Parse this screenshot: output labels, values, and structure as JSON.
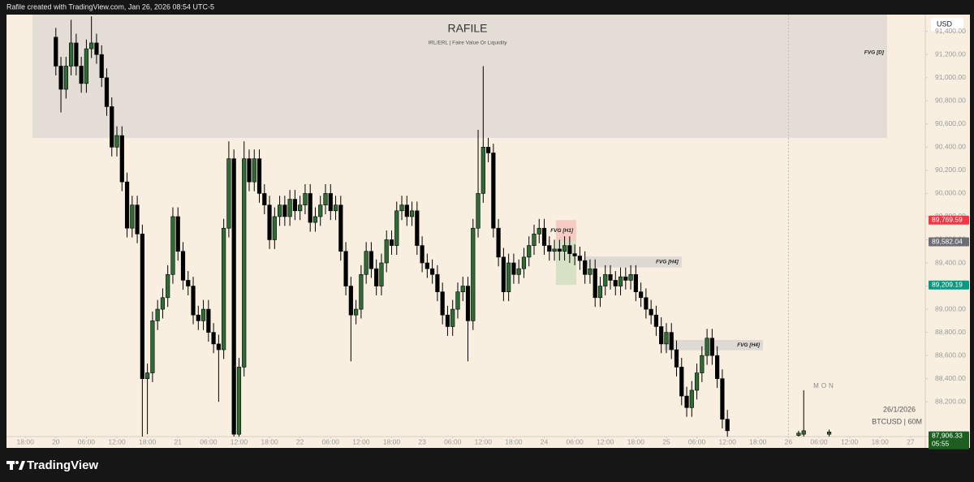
{
  "header": "Rafile created with TradingView.com, Jan 26, 2026 08:54 UTC-5",
  "footer": "TradingView",
  "chart_data": {
    "type": "candlestick",
    "title": "RAFILE",
    "subtitle": "IRL/ERL | Faire Value Or Liquidity",
    "currency": "USD",
    "symbol": "BTCUSD | 60M",
    "date": "26/1/2026",
    "session": "MON",
    "up_color": "#2f6b35",
    "down_color": "#000000",
    "xlim": [
      -3.7,
      176.9
    ],
    "ylim": [
      87900,
      91545
    ],
    "session_break": 150,
    "xticks": [
      {
        "value": 0,
        "label": "18:00"
      },
      {
        "value": 6,
        "label": "20"
      },
      {
        "value": 12,
        "label": "06:00"
      },
      {
        "value": 18,
        "label": "12:00"
      },
      {
        "value": 24,
        "label": "18:00"
      },
      {
        "value": 30,
        "label": "21"
      },
      {
        "value": 36,
        "label": "06:00"
      },
      {
        "value": 42,
        "label": "12:00"
      },
      {
        "value": 48,
        "label": "18:00"
      },
      {
        "value": 54,
        "label": "22"
      },
      {
        "value": 60,
        "label": "06:00"
      },
      {
        "value": 66,
        "label": "12:00"
      },
      {
        "value": 72,
        "label": "18:00"
      },
      {
        "value": 78,
        "label": "23"
      },
      {
        "value": 84,
        "label": "06:00"
      },
      {
        "value": 90,
        "label": "12:00"
      },
      {
        "value": 96,
        "label": "18:00"
      },
      {
        "value": 102,
        "label": "24"
      },
      {
        "value": 108,
        "label": "06:00"
      },
      {
        "value": 114,
        "label": "12:00"
      },
      {
        "value": 120,
        "label": "18:00"
      },
      {
        "value": 126,
        "label": "25"
      },
      {
        "value": 132,
        "label": "06:00"
      },
      {
        "value": 138,
        "label": "12:00"
      },
      {
        "value": 144,
        "label": "18:00"
      },
      {
        "value": 150,
        "label": "26"
      },
      {
        "value": 156,
        "label": "06:00"
      },
      {
        "value": 162,
        "label": "12:00"
      },
      {
        "value": 168,
        "label": "18:00"
      },
      {
        "value": 174,
        "label": "27"
      }
    ],
    "yticks": [
      {
        "value": 88200,
        "label": "88,200.00"
      },
      {
        "value": 88400,
        "label": "88,400.00"
      },
      {
        "value": 88600,
        "label": "88,600.00"
      },
      {
        "value": 88800,
        "label": "88,800.00"
      },
      {
        "value": 89000,
        "label": "89,000.00"
      },
      {
        "value": 89200,
        "label": "89,200.00"
      },
      {
        "value": 89400,
        "label": "89,400.00"
      },
      {
        "value": 89600,
        "label": "89,600.00"
      },
      {
        "value": 89800,
        "label": "89,800.00"
      },
      {
        "value": 90000,
        "label": "90,000.00"
      },
      {
        "value": 90200,
        "label": "90,200.00"
      },
      {
        "value": 90400,
        "label": "90,400.00"
      },
      {
        "value": 90600,
        "label": "90,600.00"
      },
      {
        "value": 90800,
        "label": "90,800.00"
      },
      {
        "value": 91000,
        "label": "91,000.00"
      },
      {
        "value": 91200,
        "label": "91,200.00"
      },
      {
        "value": 91400,
        "label": "91,400.00"
      }
    ],
    "zones": [
      {
        "label": "FVG [D]",
        "x": [
          1.4,
          169.4
        ],
        "y": [
          90480,
          91545
        ],
        "color": "rgba(200,200,200,0.45)"
      },
      {
        "x": [
          104.3,
          108.3
        ],
        "y": [
          89210,
          89590
        ],
        "color": "rgba(150,200,150,0.35)"
      },
      {
        "label": "FVG [H1]",
        "x": [
          104.3,
          108.3
        ],
        "y": [
          89590,
          89770
        ],
        "color": "rgba(240,160,160,0.45)"
      },
      {
        "label": "FVG [H4]",
        "x": [
          109.9,
          129.0
        ],
        "y": [
          89360,
          89455
        ],
        "color": "rgba(200,200,200,0.55)"
      },
      {
        "label": "FVG [H4]",
        "x": [
          125.5,
          145.0
        ],
        "y": [
          88645,
          88735
        ],
        "color": "rgba(200,200,200,0.55)"
      }
    ],
    "price_labels": [
      {
        "value": 89769.59,
        "label": "89,769.59",
        "color": "#f23645"
      },
      {
        "value": 89582.04,
        "label": "89,582.04",
        "color": "#6b6e76"
      },
      {
        "value": 89209.19,
        "label": "89,209.19",
        "color": "#089981"
      },
      {
        "value": 87906.33,
        "label": "87,906.33",
        "sub": "05:55",
        "color": "#1b5e20"
      }
    ],
    "x": [
      6,
      7,
      8,
      9,
      10,
      11,
      12,
      13,
      14,
      15,
      16,
      17,
      18,
      19,
      20,
      21,
      22,
      23,
      24,
      25,
      26,
      27,
      28,
      29,
      30,
      31,
      32,
      33,
      34,
      35,
      36,
      37,
      38,
      39,
      40,
      41,
      42,
      43,
      44,
      45,
      46,
      47,
      48,
      49,
      50,
      51,
      52,
      53,
      54,
      55,
      56,
      57,
      58,
      59,
      60,
      61,
      62,
      63,
      64,
      65,
      66,
      67,
      68,
      69,
      70,
      71,
      72,
      73,
      74,
      75,
      76,
      77,
      78,
      79,
      80,
      81,
      82,
      83,
      84,
      85,
      86,
      87,
      88,
      89,
      90,
      91,
      92,
      93,
      94,
      95,
      96,
      97,
      98,
      99,
      100,
      101,
      102,
      103,
      104,
      105,
      106,
      107,
      108,
      109,
      110,
      111,
      112,
      113,
      114,
      115,
      116,
      117,
      118,
      119,
      120,
      121,
      122,
      123,
      124,
      125,
      126,
      127,
      128,
      129,
      130,
      131,
      132,
      133,
      134,
      135,
      136,
      137,
      138,
      152,
      153,
      158
    ],
    "open": [
      91350,
      91100,
      90900,
      91100,
      91300,
      91100,
      90950,
      91250,
      91300,
      91200,
      91000,
      90750,
      90400,
      90500,
      90100,
      89700,
      89900,
      89650,
      88400,
      88450,
      88900,
      89000,
      89100,
      89300,
      89800,
      89500,
      89250,
      89200,
      88950,
      88900,
      89000,
      88800,
      88700,
      88650,
      89700,
      90300,
      87920,
      88500,
      90300,
      90100,
      90300,
      90000,
      89900,
      89600,
      89800,
      89900,
      89800,
      89950,
      89850,
      89900,
      90000,
      89750,
      89800,
      89900,
      90000,
      89850,
      89900,
      89500,
      89200,
      88950,
      89000,
      89300,
      89500,
      89350,
      89200,
      89400,
      89600,
      89550,
      89850,
      89900,
      89800,
      89850,
      89550,
      89400,
      89350,
      89300,
      89150,
      88950,
      88850,
      89000,
      89150,
      89200,
      88900,
      89700,
      90000,
      90400,
      90350,
      89700,
      89450,
      89150,
      89400,
      89300,
      89350,
      89450,
      89550,
      89650,
      89700,
      89550,
      89500,
      89520,
      89500,
      89550,
      89480,
      89460,
      89420,
      89300,
      89350,
      89100,
      89200,
      89300,
      89250,
      89200,
      89280,
      89250,
      89300,
      89150,
      89100,
      89000,
      88950,
      88850,
      88700,
      88800,
      88650,
      88500,
      88250,
      88150,
      88300,
      88450,
      88600,
      88750,
      88600,
      88400,
      88050,
      87910,
      87920,
      87920
    ],
    "high": [
      91430,
      91180,
      91180,
      91500,
      91380,
      91180,
      91330,
      91530,
      91380,
      91280,
      91080,
      90830,
      90580,
      90580,
      90180,
      89980,
      89980,
      89730,
      88530,
      88980,
      89080,
      89180,
      89380,
      89880,
      89880,
      89580,
      89330,
      89280,
      89030,
      89080,
      89080,
      88880,
      88780,
      89780,
      90450,
      90380,
      88580,
      90450,
      90380,
      90380,
      90380,
      90080,
      89980,
      89880,
      89980,
      89980,
      90030,
      90030,
      89980,
      90080,
      90080,
      89880,
      89980,
      90080,
      90080,
      89980,
      89980,
      89580,
      89280,
      89080,
      89380,
      89580,
      89580,
      89430,
      89480,
      89680,
      89680,
      89930,
      89980,
      89980,
      89930,
      89930,
      89630,
      89480,
      89430,
      89380,
      89230,
      89030,
      89080,
      89230,
      89280,
      89280,
      89780,
      90550,
      91100,
      90480,
      90430,
      89780,
      89530,
      89480,
      89480,
      89430,
      89530,
      89630,
      89730,
      89780,
      89780,
      89630,
      89600,
      89600,
      89630,
      89630,
      89560,
      89540,
      89500,
      89430,
      89430,
      89280,
      89380,
      89380,
      89330,
      89360,
      89360,
      89380,
      89380,
      89230,
      89180,
      89080,
      89030,
      88930,
      88880,
      88880,
      88730,
      88580,
      88330,
      88380,
      88530,
      88680,
      88830,
      88830,
      88680,
      88480,
      88130,
      87950,
      88300,
      87960
    ],
    "low": [
      91020,
      90700,
      90820,
      91020,
      91020,
      90870,
      90870,
      91170,
      91120,
      90920,
      90670,
      90320,
      90320,
      90020,
      89620,
      89620,
      89570,
      87900,
      87920,
      88370,
      88820,
      88920,
      89020,
      89220,
      89420,
      89170,
      89120,
      88870,
      88820,
      88820,
      88720,
      88620,
      88200,
      88570,
      89620,
      87900,
      87900,
      88420,
      90020,
      90020,
      89920,
      89820,
      89520,
      89520,
      89720,
      89720,
      89720,
      89770,
      89770,
      89820,
      89670,
      89670,
      89720,
      89820,
      89770,
      89770,
      89420,
      89120,
      88550,
      88870,
      88920,
      89220,
      89270,
      89120,
      89120,
      89320,
      89470,
      89470,
      89770,
      89720,
      89720,
      89470,
      89320,
      89270,
      89220,
      89070,
      88870,
      88770,
      88770,
      88920,
      89070,
      88550,
      88820,
      89620,
      89920,
      90270,
      89620,
      89370,
      89070,
      89070,
      89220,
      89220,
      89270,
      89370,
      89470,
      89570,
      89470,
      89420,
      89420,
      89420,
      89420,
      89400,
      89380,
      89340,
      89220,
      89220,
      89020,
      89020,
      89120,
      89170,
      89120,
      89120,
      89170,
      89170,
      89070,
      89020,
      88920,
      88870,
      88770,
      88620,
      88620,
      88570,
      88420,
      88170,
      88070,
      88070,
      88220,
      88370,
      88520,
      88520,
      88320,
      87970,
      87900,
      87900,
      87900,
      87900
    ],
    "close": [
      91100,
      90900,
      91100,
      91300,
      91100,
      90950,
      91250,
      91300,
      91200,
      91000,
      90750,
      90400,
      90500,
      90100,
      89700,
      89900,
      89650,
      88400,
      88450,
      88900,
      89000,
      89100,
      89300,
      89800,
      89500,
      89250,
      89200,
      88950,
      88900,
      89000,
      88800,
      88700,
      88650,
      89700,
      90300,
      87920,
      88500,
      90300,
      90100,
      90300,
      90000,
      89900,
      89600,
      89800,
      89900,
      89800,
      89950,
      89850,
      89900,
      90000,
      89750,
      89800,
      89900,
      90000,
      89850,
      89900,
      89500,
      89200,
      88950,
      89000,
      89300,
      89500,
      89350,
      89200,
      89400,
      89600,
      89550,
      89850,
      89900,
      89800,
      89850,
      89550,
      89400,
      89350,
      89300,
      89150,
      88950,
      88850,
      89000,
      89150,
      89200,
      88900,
      89700,
      90000,
      90400,
      90350,
      89700,
      89450,
      89150,
      89400,
      89300,
      89350,
      89450,
      89550,
      89650,
      89700,
      89550,
      89500,
      89520,
      89500,
      89550,
      89480,
      89460,
      89420,
      89300,
      89350,
      89100,
      89200,
      89300,
      89250,
      89200,
      89280,
      89250,
      89300,
      89150,
      89100,
      89000,
      88950,
      88850,
      88700,
      88800,
      88650,
      88500,
      88250,
      88150,
      88300,
      88450,
      88600,
      88750,
      88600,
      88400,
      88050,
      87950,
      87930,
      87950,
      87940
    ]
  }
}
